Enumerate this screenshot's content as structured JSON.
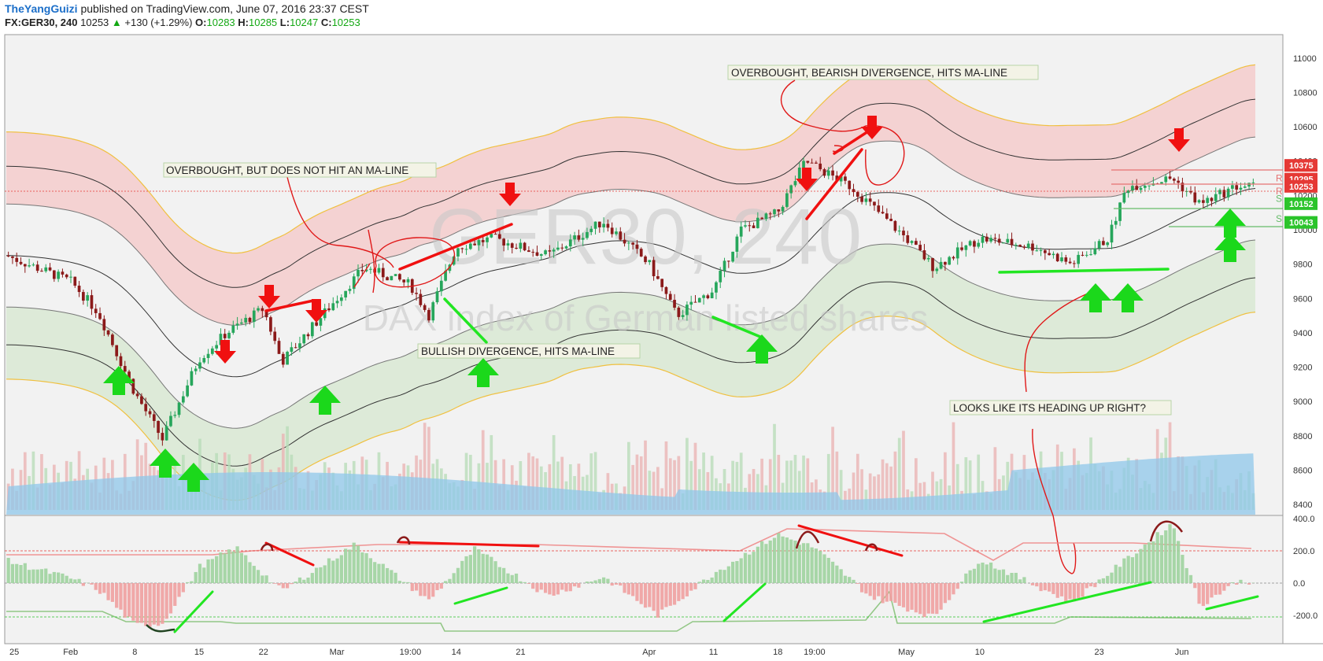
{
  "header": {
    "author": "TheYangGuizi",
    "published_text": "published on TradingView.com, June 07, 2016 23:37 CEST",
    "symbol": "FX:GER30, 240",
    "last": "10253",
    "change": "+130 (+1.29%)",
    "o_label": "O:",
    "o": "10283",
    "h_label": "H:",
    "h": "10285",
    "l_label": "L:",
    "l": "10247",
    "c_label": "C:",
    "c": "10253"
  },
  "watermark": {
    "line1": "GER30, 240",
    "line2": "DAX index of German listed shares"
  },
  "price_axis": [
    "11000",
    "10800",
    "10600",
    "10400",
    "10200",
    "10000",
    "9800",
    "9600",
    "9400",
    "9200",
    "9000",
    "8800",
    "8600",
    "8400"
  ],
  "price_tags": [
    {
      "text": "10375",
      "price": 10375,
      "color": "#e53935"
    },
    {
      "text": "10295",
      "price": 10295,
      "color": "#e53935"
    },
    {
      "text": "10253",
      "price": 10253,
      "color": "#e53935"
    },
    {
      "text": "10152",
      "price": 10152,
      "color": "#2bc42b"
    },
    {
      "text": "10043",
      "price": 10043,
      "color": "#2bc42b"
    }
  ],
  "sr_labels": [
    {
      "text": "R",
      "price": 10300,
      "color": "#e57373"
    },
    {
      "text": "R",
      "price": 10225,
      "color": "#e57373"
    },
    {
      "text": "S",
      "price": 10180,
      "color": "#66bb6a"
    },
    {
      "text": "S",
      "price": 10065,
      "color": "#66bb6a"
    }
  ],
  "osc_axis": [
    "400.0",
    "200.0",
    "0.0",
    "-200.0"
  ],
  "time_axis": [
    "25",
    "Feb",
    "8",
    "15",
    "22",
    "Mar",
    "19:00",
    "14",
    "21",
    "Apr",
    "11",
    "18",
    "19:00",
    "May",
    "10",
    "23",
    "Jun"
  ],
  "annotations": {
    "a1": "OVERBOUGHT, BUT DOES NOT HIT AN MA-LINE",
    "a2": "BULLISH DIVERGENCE, HITS MA-LINE",
    "a3": "OVERBOUGHT, BEARISH DIVERGENCE, HITS MA-LINE",
    "a4": "LOOKS LIKE ITS HEADING UP RIGHT?"
  },
  "colors": {
    "up_candle": "#26a65b",
    "down_candle": "#8b1a1a",
    "upper_band": "#f4cccc",
    "lower_band": "#d9e8d4",
    "volume": "#8fc7ea",
    "arrow_up": "#1bd81b",
    "arrow_down": "#f01010"
  },
  "chart_data": {
    "type": "candlestick",
    "price_range": [
      8350,
      11100
    ],
    "osc_range": [
      -280,
      420
    ],
    "close_series_approx": [
      {
        "t": "Jan 25",
        "v": 9850
      },
      {
        "t": "Feb 1",
        "v": 9700
      },
      {
        "t": "Feb 4",
        "v": 9520
      },
      {
        "t": "Feb 8",
        "v": 9050
      },
      {
        "t": "Feb 11",
        "v": 8780
      },
      {
        "t": "Feb 15",
        "v": 9250
      },
      {
        "t": "Feb 18",
        "v": 9400
      },
      {
        "t": "Feb 22",
        "v": 9540
      },
      {
        "t": "Feb 24",
        "v": 9230
      },
      {
        "t": "Mar 1",
        "v": 9600
      },
      {
        "t": "Mar 4",
        "v": 9780
      },
      {
        "t": "Mar 9",
        "v": 9680
      },
      {
        "t": "Mar 11",
        "v": 9500
      },
      {
        "t": "Mar 14",
        "v": 9900
      },
      {
        "t": "Mar 18",
        "v": 9950
      },
      {
        "t": "Mar 24",
        "v": 9850
      },
      {
        "t": "Mar 30",
        "v": 10050
      },
      {
        "t": "Apr 4",
        "v": 9800
      },
      {
        "t": "Apr 7",
        "v": 9500
      },
      {
        "t": "Apr 11",
        "v": 9650
      },
      {
        "t": "Apr 14",
        "v": 10000
      },
      {
        "t": "Apr 18",
        "v": 10100
      },
      {
        "t": "Apr 21",
        "v": 10400
      },
      {
        "t": "Apr 26",
        "v": 10250
      },
      {
        "t": "May 2",
        "v": 9950
      },
      {
        "t": "May 5",
        "v": 9780
      },
      {
        "t": "May 10",
        "v": 9950
      },
      {
        "t": "May 16",
        "v": 9900
      },
      {
        "t": "May 20",
        "v": 9800
      },
      {
        "t": "May 24",
        "v": 9950
      },
      {
        "t": "May 26",
        "v": 10250
      },
      {
        "t": "May 31",
        "v": 10300
      },
      {
        "t": "Jun 3",
        "v": 10150
      },
      {
        "t": "Jun 7",
        "v": 10253
      }
    ],
    "osc_series_approx": [
      {
        "t": "Jan 25",
        "v": 140
      },
      {
        "t": "Feb 1",
        "v": 30
      },
      {
        "t": "Feb 4",
        "v": -40
      },
      {
        "t": "Feb 8",
        "v": -260
      },
      {
        "t": "Feb 11",
        "v": -250
      },
      {
        "t": "Feb 15",
        "v": 100
      },
      {
        "t": "Feb 19",
        "v": 220
      },
      {
        "t": "Feb 24",
        "v": -50
      },
      {
        "t": "Mar 3",
        "v": 240
      },
      {
        "t": "Mar 11",
        "v": -110
      },
      {
        "t": "Mar 16",
        "v": 210
      },
      {
        "t": "Mar 24",
        "v": -80
      },
      {
        "t": "Mar 30",
        "v": 40
      },
      {
        "t": "Apr 5",
        "v": -200
      },
      {
        "t": "Apr 11",
        "v": 60
      },
      {
        "t": "Apr 18",
        "v": 300
      },
      {
        "t": "Apr 22",
        "v": 220
      },
      {
        "t": "Apr 28",
        "v": -80
      },
      {
        "t": "May 5",
        "v": -210
      },
      {
        "t": "May 10",
        "v": 150
      },
      {
        "t": "May 20",
        "v": -120
      },
      {
        "t": "May 31",
        "v": 370
      },
      {
        "t": "Jun 3",
        "v": -140
      },
      {
        "t": "Jun 7",
        "v": 10
      }
    ]
  }
}
